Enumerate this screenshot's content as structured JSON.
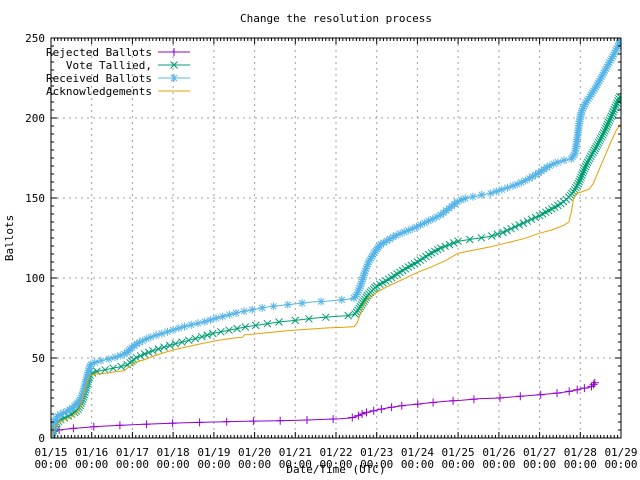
{
  "chart_data": {
    "type": "line",
    "title": "Change the resolution process",
    "xlabel": "Date/Time (UTC)",
    "ylabel": "Ballots",
    "x_unit": "day of January (UTC)",
    "xlim": [
      15,
      29
    ],
    "ylim": [
      0,
      250
    ],
    "grid": true,
    "legend_position": "top-left",
    "x_ticks": [
      "01/15",
      "01/16",
      "01/17",
      "01/18",
      "01/19",
      "01/20",
      "01/21",
      "01/22",
      "01/23",
      "01/24",
      "01/25",
      "01/26",
      "01/27",
      "01/28",
      "01/29"
    ],
    "x_tick_time": "00:00",
    "y_ticks": [
      0,
      50,
      100,
      150,
      200,
      250
    ],
    "series": [
      {
        "name": "Rejected Ballots",
        "color": "#9400D3",
        "marker": "plus",
        "points": [
          [
            15,
            0
          ],
          [
            15.02,
            2
          ],
          [
            15.05,
            4
          ],
          [
            15.12,
            4.5
          ],
          [
            15.2,
            5
          ],
          [
            15.35,
            5.5
          ],
          [
            15.55,
            6
          ],
          [
            15.8,
            6.5
          ],
          [
            16.05,
            7
          ],
          [
            16.35,
            7.5
          ],
          [
            16.75,
            8
          ],
          [
            17.2,
            8.5
          ],
          [
            17.7,
            9
          ],
          [
            18.3,
            9.5
          ],
          [
            19,
            10
          ],
          [
            19.8,
            10.5
          ],
          [
            20.6,
            10.8
          ],
          [
            21.2,
            11.2
          ],
          [
            21.7,
            11.6
          ],
          [
            22.1,
            12
          ],
          [
            22.35,
            12.5
          ],
          [
            22.5,
            13.5
          ],
          [
            22.6,
            14.5
          ],
          [
            22.68,
            15.5
          ],
          [
            22.75,
            16
          ],
          [
            22.85,
            16.5
          ],
          [
            23,
            17.5
          ],
          [
            23.2,
            18.5
          ],
          [
            23.45,
            19.5
          ],
          [
            23.7,
            20.5
          ],
          [
            23.95,
            21
          ],
          [
            24.3,
            22
          ],
          [
            24.7,
            23
          ],
          [
            25.05,
            23.5
          ],
          [
            25.5,
            24.5
          ],
          [
            26,
            25
          ],
          [
            26.5,
            26
          ],
          [
            27,
            27
          ],
          [
            27.4,
            28
          ],
          [
            27.7,
            29
          ],
          [
            27.9,
            30
          ],
          [
            28.05,
            31
          ],
          [
            28.2,
            31.5
          ],
          [
            28.3,
            32.5
          ],
          [
            28.37,
            35
          ]
        ]
      },
      {
        "name": "Vote Tallied,",
        "color": "#009E73",
        "marker": "cross",
        "points": [
          [
            15,
            0
          ],
          [
            15.03,
            3
          ],
          [
            15.08,
            6
          ],
          [
            15.13,
            9
          ],
          [
            15.2,
            11
          ],
          [
            15.28,
            12
          ],
          [
            15.38,
            13
          ],
          [
            15.48,
            14.5
          ],
          [
            15.58,
            16
          ],
          [
            15.66,
            18
          ],
          [
            15.73,
            21
          ],
          [
            15.79,
            25
          ],
          [
            15.85,
            30
          ],
          [
            15.91,
            36
          ],
          [
            15.97,
            40
          ],
          [
            16.1,
            41.5
          ],
          [
            16.3,
            42.5
          ],
          [
            16.5,
            43.5
          ],
          [
            16.7,
            44.5
          ],
          [
            16.9,
            46
          ],
          [
            17.05,
            49.5
          ],
          [
            17.25,
            52
          ],
          [
            17.5,
            54.5
          ],
          [
            17.75,
            56.5
          ],
          [
            18,
            58.5
          ],
          [
            18.3,
            60.5
          ],
          [
            18.6,
            62.5
          ],
          [
            19,
            65.5
          ],
          [
            19.4,
            67.5
          ],
          [
            19.8,
            69.5
          ],
          [
            20.2,
            71
          ],
          [
            20.6,
            72.5
          ],
          [
            21,
            73.5
          ],
          [
            21.5,
            75
          ],
          [
            22,
            76
          ],
          [
            22.3,
            76.5
          ],
          [
            22.47,
            77.5
          ],
          [
            22.57,
            81
          ],
          [
            22.67,
            85
          ],
          [
            22.77,
            89
          ],
          [
            22.9,
            92.5
          ],
          [
            23,
            95
          ],
          [
            23.25,
            98.5
          ],
          [
            23.5,
            102.5
          ],
          [
            23.75,
            106.5
          ],
          [
            24,
            110
          ],
          [
            24.3,
            115
          ],
          [
            24.6,
            119
          ],
          [
            25,
            123
          ],
          [
            25.4,
            124.5
          ],
          [
            25.8,
            126
          ],
          [
            26.1,
            128.5
          ],
          [
            26.4,
            132
          ],
          [
            26.7,
            135.5
          ],
          [
            27,
            139
          ],
          [
            27.25,
            142.5
          ],
          [
            27.5,
            146
          ],
          [
            27.7,
            150
          ],
          [
            27.85,
            154.5
          ],
          [
            27.95,
            159
          ],
          [
            28.05,
            165
          ],
          [
            28.15,
            171
          ],
          [
            28.3,
            178
          ],
          [
            28.45,
            184.5
          ],
          [
            28.6,
            192
          ],
          [
            28.75,
            200.5
          ],
          [
            28.88,
            208
          ],
          [
            28.98,
            214
          ]
        ]
      },
      {
        "name": "Received Ballots",
        "color": "#56B4E9",
        "marker": "asterisk",
        "points": [
          [
            15,
            0
          ],
          [
            15.02,
            2
          ],
          [
            15.05,
            6
          ],
          [
            15.08,
            9
          ],
          [
            15.12,
            12
          ],
          [
            15.18,
            14
          ],
          [
            15.25,
            15
          ],
          [
            15.33,
            16
          ],
          [
            15.42,
            17
          ],
          [
            15.5,
            18.5
          ],
          [
            15.58,
            20
          ],
          [
            15.65,
            22
          ],
          [
            15.72,
            24
          ],
          [
            15.78,
            28
          ],
          [
            15.83,
            33
          ],
          [
            15.88,
            38
          ],
          [
            15.93,
            43
          ],
          [
            15.98,
            46
          ],
          [
            16.1,
            47.5
          ],
          [
            16.25,
            48.5
          ],
          [
            16.45,
            49.5
          ],
          [
            16.65,
            51
          ],
          [
            16.85,
            53
          ],
          [
            17,
            57
          ],
          [
            17.15,
            59.5
          ],
          [
            17.3,
            61.5
          ],
          [
            17.5,
            63.5
          ],
          [
            17.75,
            65.5
          ],
          [
            18,
            67.5
          ],
          [
            18.25,
            69.5
          ],
          [
            18.5,
            71
          ],
          [
            18.75,
            72.5
          ],
          [
            19,
            74.5
          ],
          [
            19.3,
            76.5
          ],
          [
            19.6,
            78.5
          ],
          [
            20,
            80.5
          ],
          [
            20.35,
            82
          ],
          [
            20.7,
            83
          ],
          [
            21.05,
            84
          ],
          [
            21.4,
            85
          ],
          [
            21.75,
            85.5
          ],
          [
            22,
            86
          ],
          [
            22.2,
            86.5
          ],
          [
            22.42,
            87
          ],
          [
            22.5,
            89
          ],
          [
            22.6,
            95
          ],
          [
            22.7,
            103
          ],
          [
            22.8,
            110
          ],
          [
            22.9,
            114
          ],
          [
            23,
            118
          ],
          [
            23.1,
            121
          ],
          [
            23.3,
            124
          ],
          [
            23.5,
            127
          ],
          [
            23.7,
            129
          ],
          [
            23.9,
            131
          ],
          [
            24.1,
            133.5
          ],
          [
            24.3,
            136
          ],
          [
            24.55,
            139
          ],
          [
            24.8,
            144
          ],
          [
            25,
            148
          ],
          [
            25.2,
            150
          ],
          [
            25.5,
            151.5
          ],
          [
            25.8,
            153
          ],
          [
            26.1,
            155.5
          ],
          [
            26.4,
            158
          ],
          [
            26.7,
            161.5
          ],
          [
            27,
            166
          ],
          [
            27.2,
            169.5
          ],
          [
            27.4,
            172
          ],
          [
            27.6,
            173.5
          ],
          [
            27.78,
            174.5
          ],
          [
            27.87,
            178
          ],
          [
            27.93,
            188
          ],
          [
            27.98,
            198
          ],
          [
            28.03,
            204
          ],
          [
            28.12,
            209
          ],
          [
            28.25,
            214
          ],
          [
            28.4,
            220
          ],
          [
            28.55,
            227
          ],
          [
            28.7,
            234
          ],
          [
            28.85,
            241
          ],
          [
            28.95,
            246
          ],
          [
            28.98,
            249
          ]
        ]
      },
      {
        "name": "Acknowledgements",
        "color": "#E69F00",
        "marker": "none",
        "points": [
          [
            15,
            0
          ],
          [
            15.04,
            4
          ],
          [
            15.1,
            7
          ],
          [
            15.2,
            10
          ],
          [
            15.3,
            11
          ],
          [
            15.42,
            12
          ],
          [
            15.52,
            13.5
          ],
          [
            15.62,
            15.5
          ],
          [
            15.7,
            18
          ],
          [
            15.76,
            23
          ],
          [
            15.82,
            29
          ],
          [
            15.89,
            35
          ],
          [
            15.96,
            39
          ],
          [
            16.1,
            40
          ],
          [
            16.35,
            40.5
          ],
          [
            16.6,
            41.5
          ],
          [
            16.8,
            42
          ],
          [
            16.87,
            43.5
          ],
          [
            17,
            46
          ],
          [
            17.1,
            47.5
          ],
          [
            17.3,
            49
          ],
          [
            17.55,
            51.5
          ],
          [
            17.8,
            53.5
          ],
          [
            18,
            55
          ],
          [
            18.35,
            57
          ],
          [
            18.7,
            59
          ],
          [
            19.1,
            61
          ],
          [
            19.5,
            62.5
          ],
          [
            19.7,
            63
          ],
          [
            19.75,
            64.5
          ],
          [
            20,
            65
          ],
          [
            20.4,
            66
          ],
          [
            20.8,
            67
          ],
          [
            21.3,
            68
          ],
          [
            21.8,
            68.8
          ],
          [
            22.2,
            69.2
          ],
          [
            22.45,
            69.6
          ],
          [
            22.52,
            72
          ],
          [
            22.62,
            79
          ],
          [
            22.72,
            85
          ],
          [
            22.85,
            88.5
          ],
          [
            23,
            91
          ],
          [
            23.25,
            94.5
          ],
          [
            23.5,
            97.5
          ],
          [
            23.75,
            100.5
          ],
          [
            24,
            103.5
          ],
          [
            24.35,
            107
          ],
          [
            24.7,
            111
          ],
          [
            25,
            115.5
          ],
          [
            25.4,
            117.5
          ],
          [
            25.8,
            119.5
          ],
          [
            26.2,
            122
          ],
          [
            26.6,
            124.5
          ],
          [
            27,
            128
          ],
          [
            27.3,
            130
          ],
          [
            27.6,
            133
          ],
          [
            27.72,
            135
          ],
          [
            27.78,
            141
          ],
          [
            27.83,
            149
          ],
          [
            27.89,
            152.5
          ],
          [
            28.05,
            154
          ],
          [
            28.22,
            155.5
          ],
          [
            28.32,
            159
          ],
          [
            28.45,
            167
          ],
          [
            28.6,
            176
          ],
          [
            28.75,
            185
          ],
          [
            28.88,
            192
          ],
          [
            28.98,
            196
          ]
        ]
      }
    ],
    "colors": {
      "background": "#ffffff",
      "border": "#000000",
      "grid": "#9e9e9e",
      "text": "#000000"
    }
  }
}
